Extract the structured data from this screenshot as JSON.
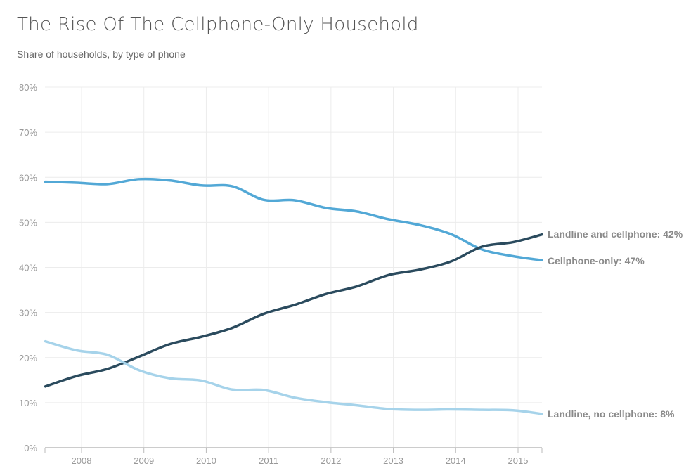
{
  "chart_data": {
    "type": "line",
    "title": "The Rise Of The Cellphone-Only Household",
    "subtitle": "Share of households, by type of phone",
    "xlabel": "",
    "ylabel": "",
    "xlim": [
      2007.42,
      2015.42
    ],
    "ylim": [
      0,
      80
    ],
    "x_ticks": [
      "2008",
      "2009",
      "2010",
      "2011",
      "2012",
      "2013",
      "2014",
      "2015"
    ],
    "y_ticks": [
      "0%",
      "10%",
      "20%",
      "30%",
      "40%",
      "50%",
      "60%",
      "70%",
      "80%"
    ],
    "grid": true,
    "x": [
      2007.42,
      2007.92,
      2008.42,
      2008.92,
      2009.42,
      2009.92,
      2010.42,
      2010.92,
      2011.42,
      2011.92,
      2012.42,
      2012.92,
      2013.42,
      2013.92,
      2014.42,
      2014.92,
      2015.42
    ],
    "series": [
      {
        "name": "Landline and cellphone",
        "label": "Landline and cellphone: 42%",
        "color": "#52a8d6",
        "values": [
          59.0,
          58.8,
          58.5,
          59.6,
          59.3,
          58.2,
          58.0,
          55.0,
          54.9,
          53.2,
          52.4,
          50.7,
          49.4,
          47.4,
          44.0,
          42.5,
          41.6
        ]
      },
      {
        "name": "Cellphone-only",
        "label": "Cellphone-only: 47%",
        "color": "#2b4b5e",
        "values": [
          13.6,
          15.9,
          17.5,
          20.2,
          23.0,
          24.6,
          26.6,
          29.7,
          31.7,
          34.1,
          35.8,
          38.3,
          39.5,
          41.3,
          44.6,
          45.6,
          47.3
        ]
      },
      {
        "name": "Landline, no cellphone",
        "label": "Landline, no cellphone: 8%",
        "color": "#a6d3ea",
        "values": [
          23.6,
          21.6,
          20.6,
          17.2,
          15.4,
          14.9,
          12.9,
          12.8,
          11.1,
          10.1,
          9.4,
          8.6,
          8.4,
          8.5,
          8.4,
          8.3,
          7.5
        ]
      }
    ]
  }
}
